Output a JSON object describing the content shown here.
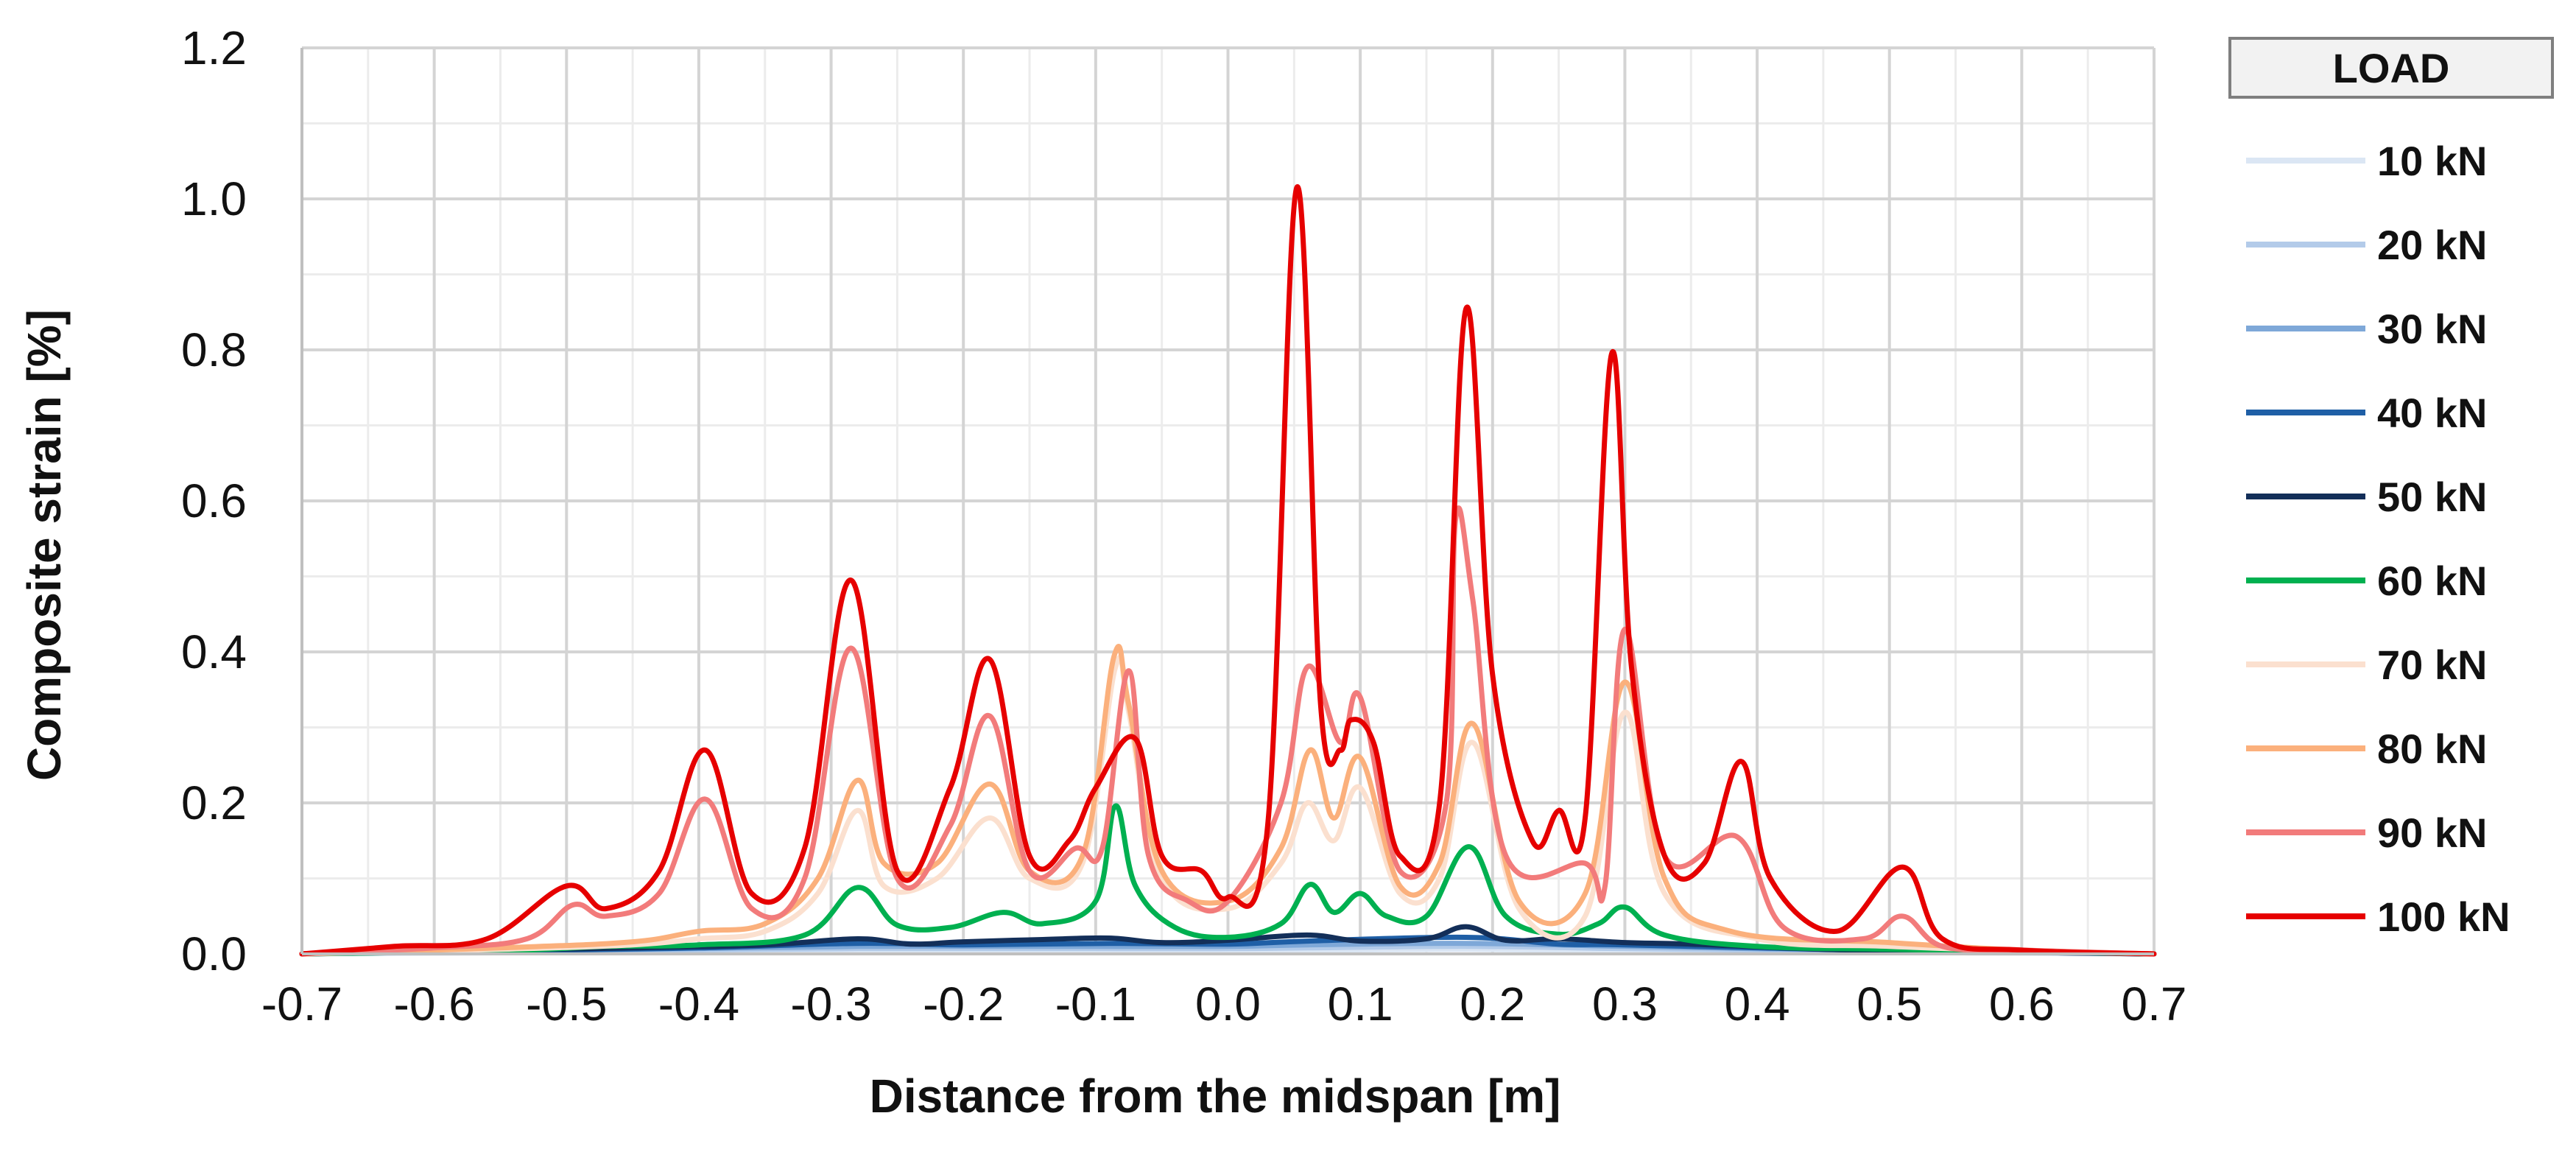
{
  "chart_data": {
    "type": "line",
    "title": "",
    "xlabel": "Distance from the midspan [m]",
    "ylabel": "Composite strain [%]",
    "xlim": [
      -0.7,
      0.7
    ],
    "ylim": [
      0,
      1.2
    ],
    "x_ticks": [
      -0.7,
      -0.6,
      -0.5,
      -0.4,
      -0.3,
      -0.2,
      -0.1,
      0.0,
      0.1,
      0.2,
      0.3,
      0.4,
      0.5,
      0.6,
      0.7
    ],
    "x_tick_labels": [
      "-0.7",
      "-0.6",
      "-0.5",
      "-0.4",
      "-0.3",
      "-0.2",
      "-0.1",
      "0.0",
      "0.1",
      "0.2",
      "0.3",
      "0.4",
      "0.5",
      "0.6",
      "0.7"
    ],
    "y_ticks": [
      0,
      0.2,
      0.4,
      0.6,
      0.8,
      1.0,
      1.2
    ],
    "y_tick_labels": [
      "0.0",
      "0.2",
      "0.4",
      "0.6",
      "0.8",
      "1.0",
      "1.2"
    ],
    "grid": true,
    "legend": {
      "title": "LOAD",
      "position": "right"
    },
    "series": [
      {
        "name": "10 kN",
        "color": "#dbe6f4",
        "points": [
          [
            -0.7,
            0.0
          ],
          [
            -0.5,
            0.002
          ],
          [
            -0.28,
            0.004
          ],
          [
            -0.1,
            0.004
          ],
          [
            0.0,
            0.004
          ],
          [
            0.06,
            0.005
          ],
          [
            0.18,
            0.006
          ],
          [
            0.3,
            0.004
          ],
          [
            0.5,
            0.002
          ],
          [
            0.7,
            0.0
          ]
        ]
      },
      {
        "name": "20 kN",
        "color": "#b3cbe9",
        "points": [
          [
            -0.7,
            0.0
          ],
          [
            -0.5,
            0.004
          ],
          [
            -0.28,
            0.007
          ],
          [
            -0.1,
            0.007
          ],
          [
            0.0,
            0.007
          ],
          [
            0.06,
            0.008
          ],
          [
            0.18,
            0.01
          ],
          [
            0.3,
            0.007
          ],
          [
            0.5,
            0.003
          ],
          [
            0.7,
            0.0
          ]
        ]
      },
      {
        "name": "30 kN",
        "color": "#7ea8d8",
        "points": [
          [
            -0.7,
            0.0
          ],
          [
            -0.5,
            0.005
          ],
          [
            -0.28,
            0.01
          ],
          [
            -0.1,
            0.01
          ],
          [
            0.0,
            0.01
          ],
          [
            0.06,
            0.012
          ],
          [
            0.18,
            0.014
          ],
          [
            0.3,
            0.01
          ],
          [
            0.5,
            0.004
          ],
          [
            0.7,
            0.0
          ]
        ]
      },
      {
        "name": "40 kN",
        "color": "#1f5fa6",
        "points": [
          [
            -0.7,
            0.0
          ],
          [
            -0.55,
            0.004
          ],
          [
            -0.4,
            0.008
          ],
          [
            -0.28,
            0.014
          ],
          [
            -0.2,
            0.012
          ],
          [
            -0.09,
            0.014
          ],
          [
            0.0,
            0.013
          ],
          [
            0.06,
            0.017
          ],
          [
            0.18,
            0.022
          ],
          [
            0.25,
            0.013
          ],
          [
            0.3,
            0.012
          ],
          [
            0.45,
            0.006
          ],
          [
            0.55,
            0.003
          ],
          [
            0.7,
            0.0
          ]
        ]
      },
      {
        "name": "50 kN",
        "color": "#132f59",
        "points": [
          [
            -0.7,
            0.0
          ],
          [
            -0.55,
            0.005
          ],
          [
            -0.45,
            0.008
          ],
          [
            -0.35,
            0.012
          ],
          [
            -0.28,
            0.02
          ],
          [
            -0.24,
            0.013
          ],
          [
            -0.2,
            0.016
          ],
          [
            -0.14,
            0.019
          ],
          [
            -0.09,
            0.021
          ],
          [
            -0.05,
            0.015
          ],
          [
            0.0,
            0.018
          ],
          [
            0.06,
            0.025
          ],
          [
            0.1,
            0.017
          ],
          [
            0.15,
            0.02
          ],
          [
            0.18,
            0.036
          ],
          [
            0.21,
            0.018
          ],
          [
            0.25,
            0.02
          ],
          [
            0.3,
            0.015
          ],
          [
            0.35,
            0.013
          ],
          [
            0.45,
            0.006
          ],
          [
            0.55,
            0.003
          ],
          [
            0.7,
            0.0
          ]
        ]
      },
      {
        "name": "60 kN",
        "color": "#00b050",
        "points": [
          [
            -0.7,
            0.0
          ],
          [
            -0.55,
            0.004
          ],
          [
            -0.47,
            0.01
          ],
          [
            -0.4,
            0.012
          ],
          [
            -0.32,
            0.025
          ],
          [
            -0.28,
            0.088
          ],
          [
            -0.25,
            0.038
          ],
          [
            -0.21,
            0.035
          ],
          [
            -0.17,
            0.055
          ],
          [
            -0.14,
            0.04
          ],
          [
            -0.1,
            0.07
          ],
          [
            -0.085,
            0.196
          ],
          [
            -0.07,
            0.09
          ],
          [
            -0.04,
            0.035
          ],
          [
            0.0,
            0.022
          ],
          [
            0.04,
            0.04
          ],
          [
            0.062,
            0.092
          ],
          [
            0.08,
            0.055
          ],
          [
            0.1,
            0.08
          ],
          [
            0.12,
            0.05
          ],
          [
            0.15,
            0.05
          ],
          [
            0.182,
            0.142
          ],
          [
            0.21,
            0.05
          ],
          [
            0.25,
            0.026
          ],
          [
            0.28,
            0.04
          ],
          [
            0.3,
            0.062
          ],
          [
            0.33,
            0.025
          ],
          [
            0.4,
            0.01
          ],
          [
            0.5,
            0.006
          ],
          [
            0.6,
            0.003
          ],
          [
            0.7,
            0.0
          ]
        ]
      },
      {
        "name": "70 kN",
        "color": "#fbe0cf",
        "points": [
          [
            -0.7,
            0.0
          ],
          [
            -0.55,
            0.006
          ],
          [
            -0.45,
            0.012
          ],
          [
            -0.4,
            0.02
          ],
          [
            -0.35,
            0.03
          ],
          [
            -0.31,
            0.08
          ],
          [
            -0.28,
            0.19
          ],
          [
            -0.26,
            0.09
          ],
          [
            -0.22,
            0.1
          ],
          [
            -0.18,
            0.18
          ],
          [
            -0.15,
            0.1
          ],
          [
            -0.11,
            0.12
          ],
          [
            -0.085,
            0.38
          ],
          [
            -0.075,
            0.32
          ],
          [
            -0.05,
            0.1
          ],
          [
            0.0,
            0.06
          ],
          [
            0.04,
            0.12
          ],
          [
            0.06,
            0.2
          ],
          [
            0.08,
            0.15
          ],
          [
            0.1,
            0.22
          ],
          [
            0.13,
            0.08
          ],
          [
            0.16,
            0.1
          ],
          [
            0.185,
            0.28
          ],
          [
            0.22,
            0.06
          ],
          [
            0.27,
            0.05
          ],
          [
            0.3,
            0.32
          ],
          [
            0.33,
            0.08
          ],
          [
            0.4,
            0.02
          ],
          [
            0.5,
            0.01
          ],
          [
            0.6,
            0.004
          ],
          [
            0.7,
            0.0
          ]
        ]
      },
      {
        "name": "80 kN",
        "color": "#fbb07c",
        "points": [
          [
            -0.7,
            0.0
          ],
          [
            -0.55,
            0.008
          ],
          [
            -0.45,
            0.016
          ],
          [
            -0.4,
            0.03
          ],
          [
            -0.35,
            0.04
          ],
          [
            -0.31,
            0.1
          ],
          [
            -0.28,
            0.23
          ],
          [
            -0.26,
            0.12
          ],
          [
            -0.22,
            0.12
          ],
          [
            -0.18,
            0.225
          ],
          [
            -0.15,
            0.11
          ],
          [
            -0.11,
            0.13
          ],
          [
            -0.086,
            0.395
          ],
          [
            -0.075,
            0.33
          ],
          [
            -0.05,
            0.11
          ],
          [
            0.0,
            0.07
          ],
          [
            0.04,
            0.14
          ],
          [
            0.062,
            0.27
          ],
          [
            0.08,
            0.18
          ],
          [
            0.1,
            0.26
          ],
          [
            0.13,
            0.09
          ],
          [
            0.16,
            0.12
          ],
          [
            0.185,
            0.305
          ],
          [
            0.22,
            0.07
          ],
          [
            0.27,
            0.08
          ],
          [
            0.3,
            0.36
          ],
          [
            0.33,
            0.1
          ],
          [
            0.38,
            0.03
          ],
          [
            0.5,
            0.015
          ],
          [
            0.6,
            0.005
          ],
          [
            0.7,
            0.0
          ]
        ]
      },
      {
        "name": "90 kN",
        "color": "#f27b7b",
        "points": [
          [
            -0.7,
            0.0
          ],
          [
            -0.6,
            0.008
          ],
          [
            -0.53,
            0.02
          ],
          [
            -0.495,
            0.065
          ],
          [
            -0.47,
            0.05
          ],
          [
            -0.43,
            0.08
          ],
          [
            -0.395,
            0.205
          ],
          [
            -0.36,
            0.06
          ],
          [
            -0.32,
            0.1
          ],
          [
            -0.285,
            0.405
          ],
          [
            -0.25,
            0.1
          ],
          [
            -0.21,
            0.17
          ],
          [
            -0.18,
            0.315
          ],
          [
            -0.15,
            0.11
          ],
          [
            -0.115,
            0.14
          ],
          [
            -0.095,
            0.14
          ],
          [
            -0.075,
            0.375
          ],
          [
            -0.06,
            0.13
          ],
          [
            -0.03,
            0.07
          ],
          [
            0.0,
            0.07
          ],
          [
            0.04,
            0.2
          ],
          [
            0.06,
            0.38
          ],
          [
            0.085,
            0.28
          ],
          [
            0.1,
            0.34
          ],
          [
            0.13,
            0.11
          ],
          [
            0.165,
            0.2
          ],
          [
            0.172,
            0.575
          ],
          [
            0.185,
            0.47
          ],
          [
            0.21,
            0.13
          ],
          [
            0.27,
            0.12
          ],
          [
            0.285,
            0.09
          ],
          [
            0.3,
            0.43
          ],
          [
            0.33,
            0.13
          ],
          [
            0.385,
            0.155
          ],
          [
            0.42,
            0.035
          ],
          [
            0.48,
            0.02
          ],
          [
            0.51,
            0.05
          ],
          [
            0.54,
            0.01
          ],
          [
            0.6,
            0.005
          ],
          [
            0.7,
            0.0
          ]
        ]
      },
      {
        "name": "100 kN",
        "color": "#e60000",
        "points": [
          [
            -0.7,
            0.0
          ],
          [
            -0.63,
            0.01
          ],
          [
            -0.56,
            0.02
          ],
          [
            -0.5,
            0.09
          ],
          [
            -0.47,
            0.06
          ],
          [
            -0.43,
            0.11
          ],
          [
            -0.395,
            0.27
          ],
          [
            -0.36,
            0.08
          ],
          [
            -0.32,
            0.14
          ],
          [
            -0.285,
            0.495
          ],
          [
            -0.25,
            0.11
          ],
          [
            -0.21,
            0.22
          ],
          [
            -0.18,
            0.39
          ],
          [
            -0.15,
            0.13
          ],
          [
            -0.12,
            0.15
          ],
          [
            -0.1,
            0.22
          ],
          [
            -0.07,
            0.285
          ],
          [
            -0.05,
            0.13
          ],
          [
            -0.02,
            0.11
          ],
          [
            0.0,
            0.075
          ],
          [
            0.03,
            0.17
          ],
          [
            0.052,
            1.015
          ],
          [
            0.07,
            0.33
          ],
          [
            0.085,
            0.27
          ],
          [
            0.093,
            0.31
          ],
          [
            0.11,
            0.28
          ],
          [
            0.13,
            0.13
          ],
          [
            0.16,
            0.2
          ],
          [
            0.18,
            0.855
          ],
          [
            0.2,
            0.37
          ],
          [
            0.23,
            0.15
          ],
          [
            0.25,
            0.19
          ],
          [
            0.27,
            0.18
          ],
          [
            0.29,
            0.795
          ],
          [
            0.305,
            0.38
          ],
          [
            0.33,
            0.13
          ],
          [
            0.36,
            0.12
          ],
          [
            0.388,
            0.255
          ],
          [
            0.41,
            0.1
          ],
          [
            0.46,
            0.03
          ],
          [
            0.51,
            0.115
          ],
          [
            0.54,
            0.02
          ],
          [
            0.6,
            0.005
          ],
          [
            0.7,
            0.0
          ]
        ]
      }
    ]
  }
}
